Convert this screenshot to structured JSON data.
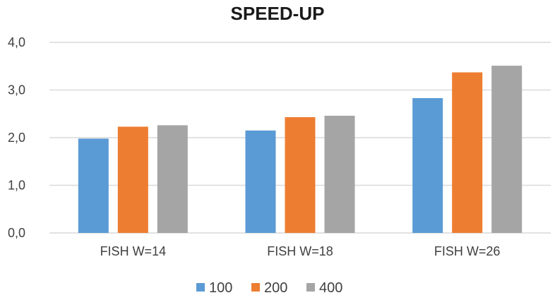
{
  "chart_data": {
    "type": "bar",
    "title": "SPEED-UP",
    "xlabel": "",
    "ylabel": "",
    "categories": [
      "FISH W=14",
      "FISH W=18",
      "FISH W=26"
    ],
    "series": [
      {
        "name": "100",
        "color": "#5b9bd5",
        "values": [
          1.98,
          2.15,
          2.83
        ]
      },
      {
        "name": "200",
        "color": "#ed7d31",
        "values": [
          2.23,
          2.43,
          3.37
        ]
      },
      {
        "name": "400",
        "color": "#a5a5a5",
        "values": [
          2.26,
          2.46,
          3.51
        ]
      }
    ],
    "ylim": [
      0,
      4
    ],
    "yticks": [
      "0,0",
      "1,0",
      "2,0",
      "3,0",
      "4,0"
    ],
    "grid": true,
    "legend_position": "bottom"
  }
}
